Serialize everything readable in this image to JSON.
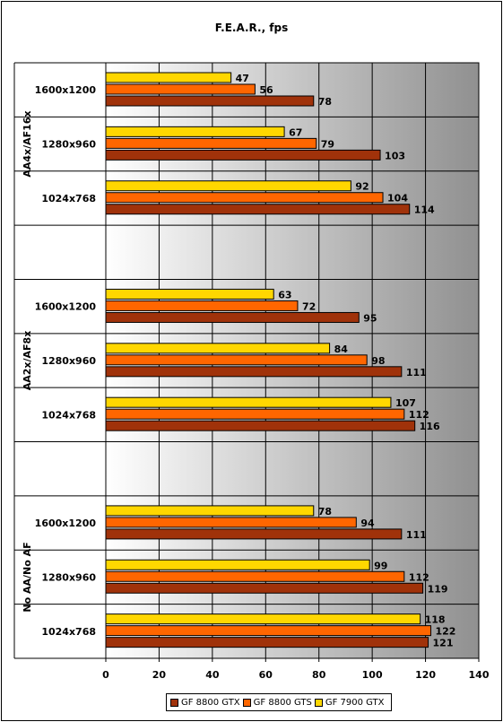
{
  "chart_data": {
    "type": "bar",
    "orientation": "horizontal",
    "title": "F.E.A.R., fps",
    "xlim": [
      0,
      140
    ],
    "xticks": [
      0,
      20,
      40,
      60,
      80,
      100,
      120,
      140
    ],
    "grid": true,
    "legend_position": "bottom",
    "groups": [
      {
        "label": "AA4x/AF16x",
        "categories": [
          "1600x1200",
          "1280x960",
          "1024x768"
        ]
      },
      {
        "label": "AA2x/AF8x",
        "categories": [
          "1600x1200",
          "1280x960",
          "1024x768"
        ]
      },
      {
        "label": "No AA/No AF",
        "categories": [
          "1600x1200",
          "1280x960",
          "1024x768"
        ]
      }
    ],
    "series": [
      {
        "name": "GF 7900 GTX",
        "color": "#FFD700",
        "values": [
          47,
          67,
          92,
          63,
          84,
          107,
          78,
          99,
          118
        ]
      },
      {
        "name": "GF 8800 GTS",
        "color": "#FF6600",
        "values": [
          56,
          79,
          104,
          72,
          98,
          112,
          94,
          112,
          122
        ]
      },
      {
        "name": "GF 8800 GTX",
        "color": "#A0320A",
        "values": [
          78,
          103,
          114,
          95,
          111,
          116,
          111,
          119,
          121
        ]
      }
    ],
    "legend_order": [
      "GF 8800 GTX",
      "GF 8800 GTS",
      "GF 7900 GTX"
    ]
  }
}
